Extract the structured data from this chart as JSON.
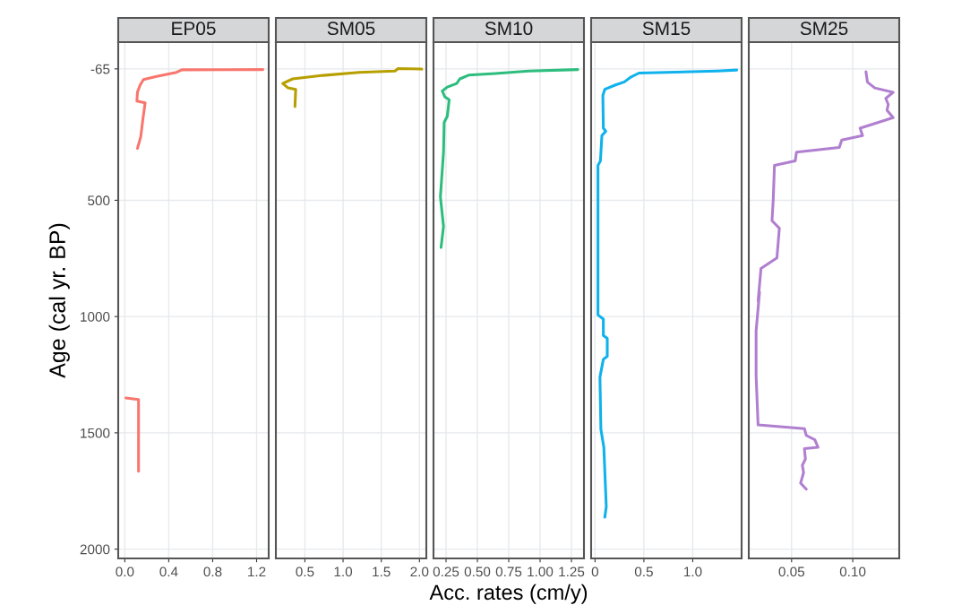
{
  "chart_data": [
    {
      "type": "line",
      "title": "EP05",
      "ylabel": "Age (cal yr. BP)",
      "grid": true,
      "ylim": [
        2040,
        -180
      ],
      "yticks": [
        -65,
        500,
        1000,
        1500,
        2000
      ],
      "xlim": [
        -0.06,
        1.31
      ],
      "xticks": [
        {
          "value": 0,
          "label": "0.0"
        },
        0.4,
        0.8,
        1.2
      ],
      "series": [
        {
          "color": "#f8766d",
          "x": [
            1.257,
            0.52,
            0.47,
            0.28,
            0.17,
            0.14,
            0.115,
            0.11,
            0.185,
            0.165,
            0.145,
            0.115,
            null,
            0.01,
            0.125,
            0.125,
            0.125
          ],
          "values": [
            -62,
            -61,
            -50,
            -32,
            -19,
            4,
            35,
            73,
            81,
            150,
            227,
            277,
            null,
            1350,
            1357,
            1511,
            1665
          ]
        }
      ]
    },
    {
      "type": "line",
      "title": "SM05",
      "grid": true,
      "tick_labels": "x",
      "ylim": [
        2040,
        -180
      ],
      "yticks": [
        -65,
        500,
        1000,
        1500,
        2000
      ],
      "xlim": [
        0.12,
        2.09
      ],
      "xticks": [
        0.5,
        {
          "value": 1,
          "label": "1.0"
        },
        1.5,
        {
          "value": 2,
          "label": "2.0"
        }
      ],
      "series": [
        {
          "color": "#b79f00",
          "x": [
            2.03,
            1.72,
            1.68,
            1.21,
            0.74,
            0.34,
            0.21,
            0.28,
            0.38,
            0.37
          ],
          "values": [
            -64,
            -66,
            -56,
            -50,
            -37,
            -22,
            -2,
            17,
            23,
            97
          ]
        }
      ]
    },
    {
      "type": "line",
      "title": "SM10",
      "xlabel": "Acc. rates (cm/y)",
      "grid": true,
      "tick_labels": "x",
      "ylim": [
        2040,
        -180
      ],
      "yticks": [
        -65,
        500,
        1000,
        1500,
        2000
      ],
      "xlim": [
        0.15,
        1.35
      ],
      "xticks": [
        0.25,
        {
          "value": 0.5,
          "label": "0.50"
        },
        0.75,
        {
          "value": 1,
          "label": "1.00"
        },
        1.25
      ],
      "series": [
        {
          "color": "#2dbd7e",
          "x": [
            1.3,
            0.91,
            0.645,
            0.43,
            0.36,
            0.335,
            0.26,
            0.22,
            0.24,
            0.275,
            0.26,
            0.235,
            0.23,
            0.205,
            0.23,
            0.21
          ],
          "values": [
            -62,
            -56,
            -45,
            -38,
            -22,
            -2,
            13,
            30,
            55,
            68,
            139,
            165,
            293,
            485,
            613,
            703
          ]
        }
      ]
    },
    {
      "type": "line",
      "title": "SM15",
      "grid": true,
      "tick_labels": "x",
      "ylim": [
        2040,
        -180
      ],
      "yticks": [
        -65,
        500,
        1000,
        1500,
        2000
      ],
      "xlim": [
        -0.04,
        1.5
      ],
      "xticks": [
        0,
        0.5,
        {
          "value": 1,
          "label": "1.0"
        }
      ],
      "series": [
        {
          "color": "#0fb2ec",
          "x": [
            1.45,
            1.25,
            0.45,
            0.36,
            0.3,
            0.21,
            0.1,
            0.08,
            0.085,
            0.11,
            0.07,
            0.055,
            0.03,
            0.03,
            0.03,
            0.085,
            0.085,
            0.125,
            0.125,
            0.085,
            0.05,
            0.06,
            0.09,
            0.115,
            0.1
          ],
          "values": [
            -60,
            -56,
            -47,
            -28,
            -9,
            4,
            23,
            49,
            190,
            203,
            222,
            331,
            350,
            934,
            993,
            1011,
            1081,
            1094,
            1171,
            1184,
            1261,
            1485,
            1562,
            1818,
            1863
          ]
        }
      ]
    },
    {
      "type": "line",
      "title": "SM25",
      "grid": true,
      "tick_labels": "x",
      "ylim": [
        2040,
        -180
      ],
      "yticks": [
        -65,
        500,
        1000,
        1500,
        2000
      ],
      "xlim": [
        0.015,
        0.138
      ],
      "xticks": [
        0.05,
        {
          "value": 0.1,
          "label": "0.10"
        }
      ],
      "series": [
        {
          "color": "#b07fd0",
          "x": [
            0.1108,
            0.112,
            0.118,
            0.133,
            0.127,
            0.129,
            0.128,
            0.133,
            0.121,
            0.106,
            0.108,
            0.091,
            0.089,
            0.054,
            0.053,
            0.036,
            0.035,
            0.034,
            0.04,
            0.038,
            0.025,
            0.0226,
            0.0238,
            0.021,
            0.021,
            0.0226,
            0.0605,
            0.062,
            0.069,
            0.0716,
            0.0605,
            0.0613,
            0.0588,
            0.0598,
            0.0574,
            0.062
          ],
          "values": [
            -53,
            -8,
            17,
            36,
            62,
            88,
            113,
            145,
            165,
            190,
            222,
            241,
            273,
            293,
            331,
            350,
            498,
            588,
            620,
            748,
            793,
            934,
            895,
            1062,
            1254,
            1466,
            1482,
            1511,
            1530,
            1562,
            1568,
            1613,
            1639,
            1671,
            1716,
            1742
          ]
        }
      ]
    }
  ]
}
